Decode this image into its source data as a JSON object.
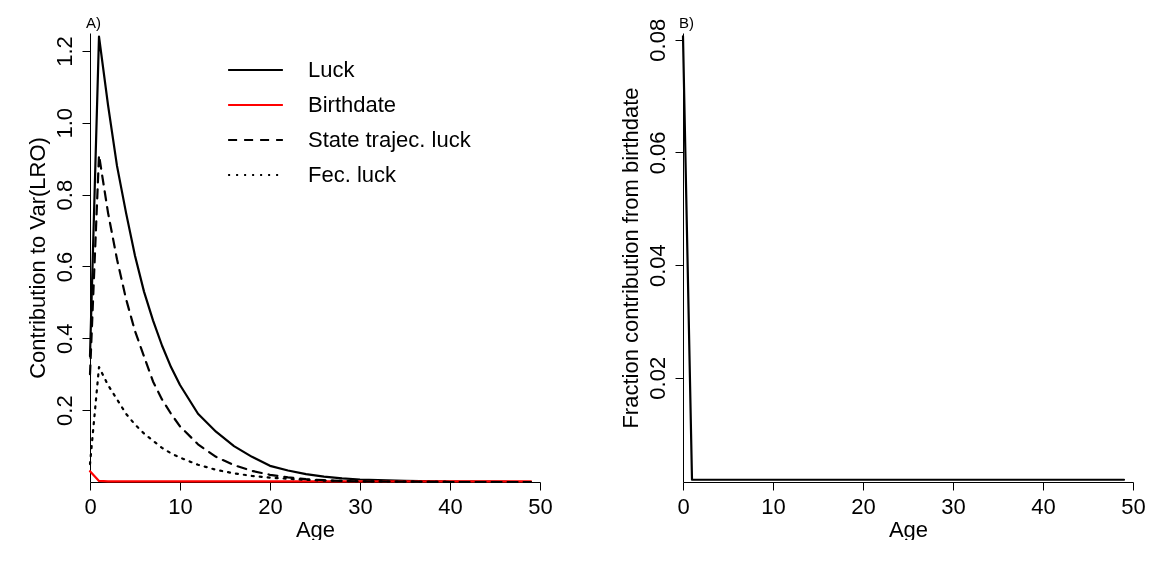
{
  "chart_data": [
    {
      "type": "line",
      "xlabel": "Age",
      "ylabel": "Contribution to Var(LRO)",
      "annotations": [
        "A)"
      ],
      "legend": "top right",
      "x": [
        0,
        1,
        2,
        3,
        4,
        5,
        6,
        7,
        8,
        9,
        10,
        12,
        14,
        16,
        18,
        20,
        22,
        24,
        26,
        28,
        30,
        35,
        40,
        45,
        49
      ],
      "xlim": [
        0,
        50
      ],
      "xticks": [
        0,
        10,
        20,
        30,
        40,
        50
      ],
      "ylim": [
        0,
        1.25
      ],
      "yticks": [
        0.2,
        0.4,
        0.6,
        0.8,
        {
          "value": 1,
          "label": "1.0"
        },
        1.2
      ],
      "series": [
        {
          "name": "Luck",
          "color": "#000000",
          "line_style": "solid",
          "values": [
            0.35,
            1.24,
            1.05,
            0.88,
            0.75,
            0.63,
            0.53,
            0.45,
            0.38,
            0.32,
            0.27,
            0.19,
            0.14,
            0.1,
            0.07,
            0.045,
            0.032,
            0.022,
            0.015,
            0.01,
            0.007,
            0.003,
            0.001,
            0.001,
            0
          ]
        },
        {
          "name": "Birthdate",
          "color": "#ff0000",
          "line_style": "solid",
          "values": [
            0.03,
            0.003,
            0.002,
            0.002,
            0.002,
            0.002,
            0.002,
            0.002,
            0.002,
            0.002,
            0.002,
            0.002,
            0.002,
            0.002,
            0.002,
            0.002,
            0.002,
            0.002,
            0.002,
            0.002,
            0.002,
            0.002,
            0.002,
            0.002,
            0.002
          ]
        },
        {
          "name": "State trajec. luck",
          "color": "#000000",
          "line_style": "dashed",
          "values": [
            0.3,
            0.91,
            0.75,
            0.62,
            0.51,
            0.42,
            0.35,
            0.28,
            0.23,
            0.19,
            0.155,
            0.105,
            0.07,
            0.047,
            0.031,
            0.02,
            0.013,
            0.008,
            0.005,
            0.003,
            0.002,
            0.001,
            0,
            0,
            0
          ]
        },
        {
          "name": "Fec. luck",
          "color": "#000000",
          "line_style": "dotted",
          "values": [
            0.05,
            0.32,
            0.27,
            0.23,
            0.19,
            0.16,
            0.135,
            0.115,
            0.095,
            0.08,
            0.068,
            0.048,
            0.034,
            0.024,
            0.017,
            0.012,
            0.009,
            0.006,
            0.004,
            0.003,
            0.002,
            0.001,
            0,
            0,
            0
          ]
        }
      ]
    },
    {
      "type": "line",
      "xlabel": "Age",
      "ylabel": "Fraction contribution from birthdate",
      "annotations": [
        "B)"
      ],
      "x": [
        0,
        1,
        2,
        3,
        4,
        5,
        6,
        7,
        8,
        9,
        10,
        12,
        14,
        16,
        18,
        20,
        22,
        24,
        26,
        28,
        30,
        35,
        40,
        45,
        49
      ],
      "xlim": [
        0,
        50
      ],
      "xticks": [
        0,
        10,
        20,
        30,
        40,
        50
      ],
      "ylim": [
        0.0015,
        0.0812
      ],
      "yticks": [
        0.02,
        0.04,
        0.06,
        0.08
      ],
      "series": [
        {
          "color": "#000000",
          "line_style": "solid",
          "values": [
            0.0806,
            0.0019,
            0.0019,
            0.0019,
            0.0019,
            0.0019,
            0.0019,
            0.0019,
            0.0019,
            0.0019,
            0.0019,
            0.0019,
            0.0019,
            0.0019,
            0.0019,
            0.0019,
            0.0019,
            0.0019,
            0.0019,
            0.0019,
            0.0019,
            0.0019,
            0.0019,
            0.0019,
            0.0019
          ]
        }
      ]
    }
  ]
}
